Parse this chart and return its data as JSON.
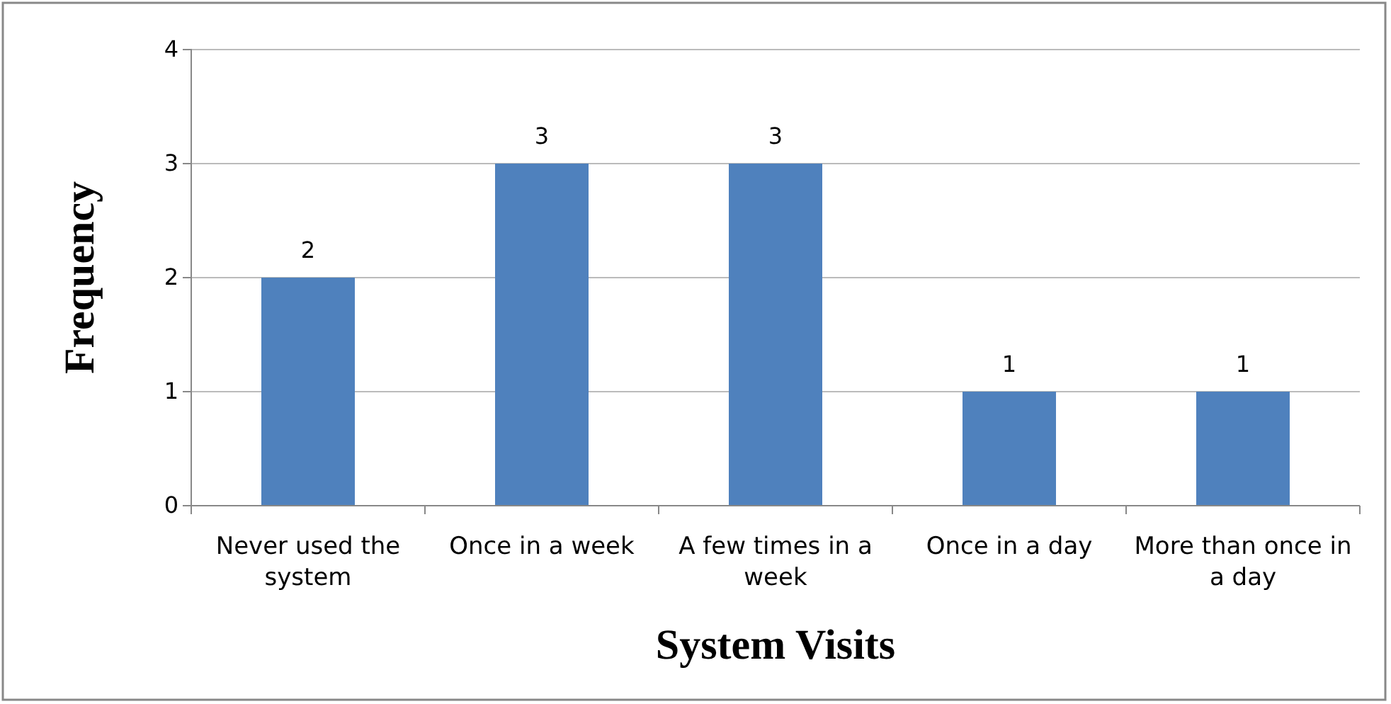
{
  "chart_data": {
    "type": "bar",
    "xlabel": "System Visits",
    "ylabel": "Frequency",
    "categories": [
      "Never used the system",
      "Once in a week",
      "A few times in a week",
      "Once in a day",
      "More than once in a day"
    ],
    "values": [
      2,
      3,
      3,
      1,
      1
    ],
    "color": "#4f81bd",
    "ylim": [
      0,
      4
    ],
    "yticks": [
      0,
      1,
      2,
      3,
      4
    ],
    "grid": "y",
    "data_labels": true
  }
}
